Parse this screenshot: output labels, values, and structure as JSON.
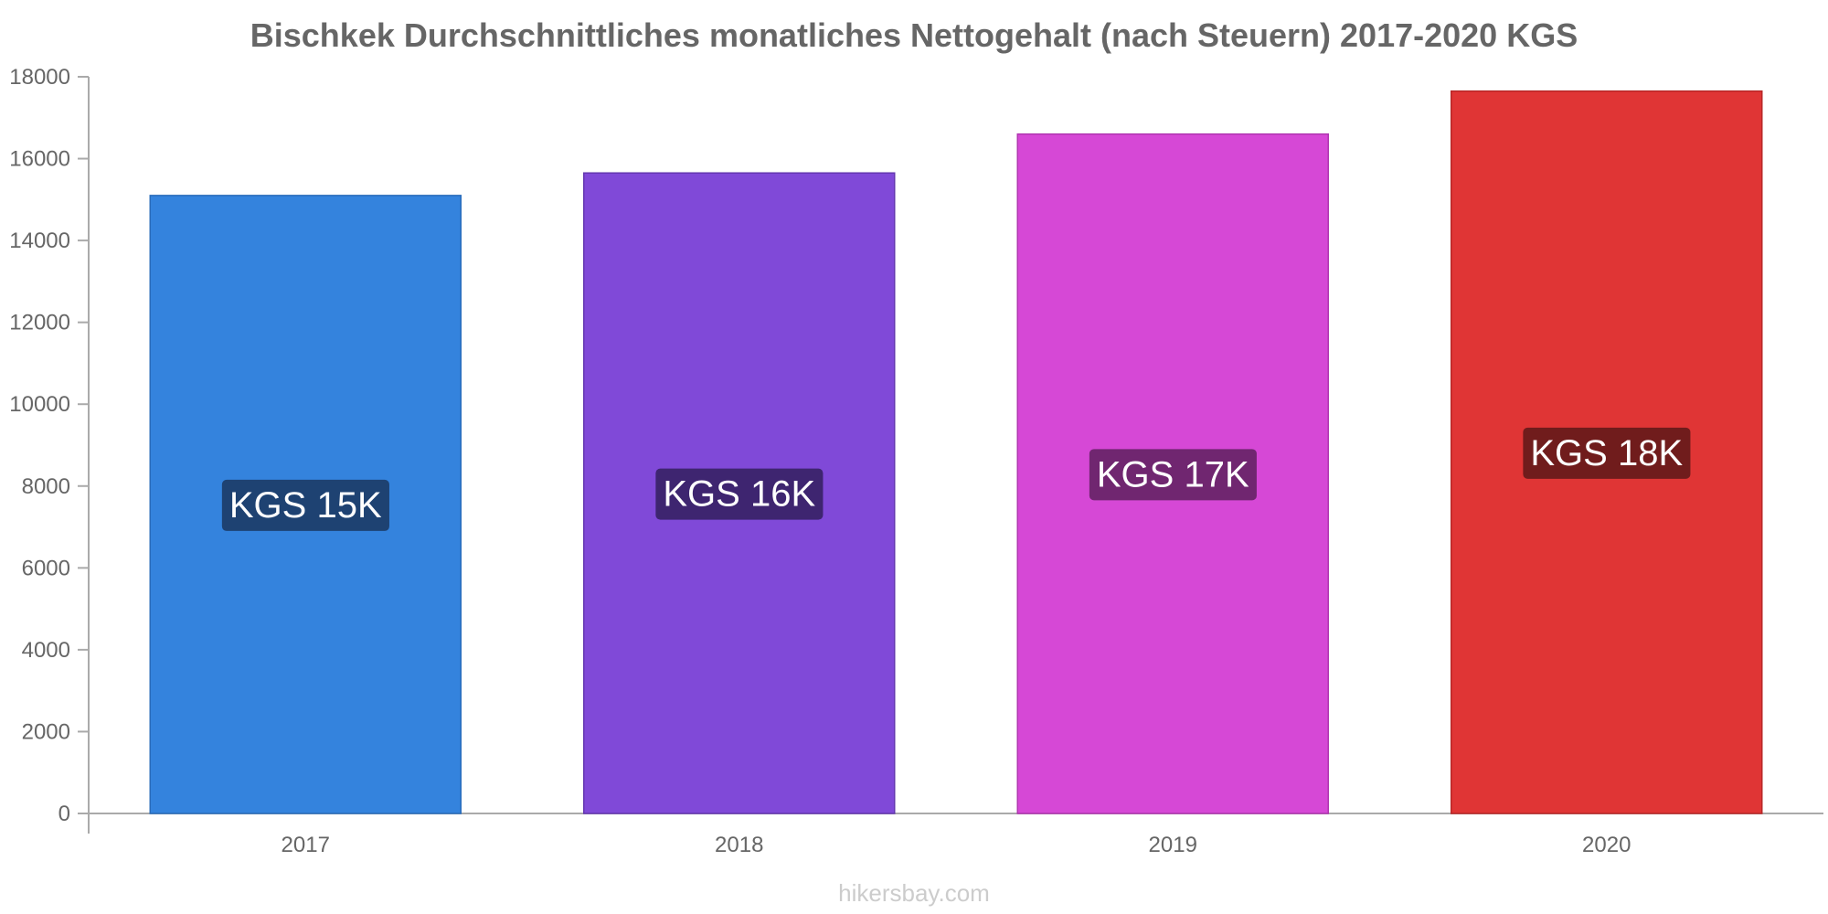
{
  "chart_data": {
    "type": "bar",
    "title": "Bischkek Durchschnittliches monatliches Nettogehalt (nach Steuern) 2017-2020 KGS",
    "categories": [
      "2017",
      "2018",
      "2019",
      "2020"
    ],
    "values": [
      15100,
      15650,
      16600,
      17650
    ],
    "data_labels": [
      "KGS 15K",
      "KGS 16K",
      "KGS 17K",
      "KGS 18K"
    ],
    "bar_colors": [
      "#3483dd",
      "#8049d8",
      "#d648d6",
      "#e03535"
    ],
    "bar_stroke_colors": [
      "#2a6cba",
      "#6438b0",
      "#b035b0",
      "#b82828"
    ],
    "label_bg_colors": [
      "#1e4272",
      "#3e2570",
      "#702670",
      "#701c1c"
    ],
    "xlabel": "",
    "ylabel": "",
    "ylim": [
      0,
      18000
    ],
    "yticks": [
      0,
      2000,
      4000,
      6000,
      8000,
      10000,
      12000,
      14000,
      16000,
      18000
    ],
    "grid": false,
    "legend": "none"
  },
  "watermark": "hikersbay.com",
  "colors": {
    "axis": "#aaaaaa",
    "text": "#666666",
    "watermark": "#cccccc"
  }
}
